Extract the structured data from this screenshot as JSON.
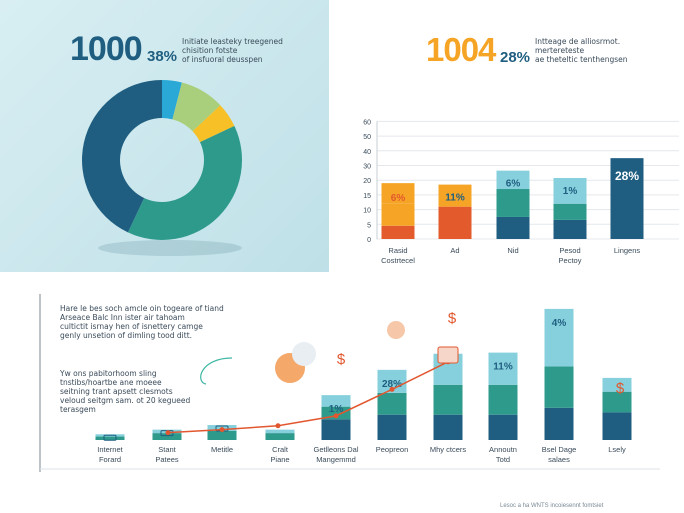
{
  "colors": {
    "dark_teal": "#1f5e80",
    "teal": "#2e9a8c",
    "light_cyan": "#85d0dc",
    "orange": "#f6a426",
    "red_orange": "#e35a2c",
    "green": "#a9cf7c",
    "accent_red": "#e2572f"
  },
  "donut_panel": {
    "big_number": "1000",
    "percent": "38%",
    "note_lines": [
      "Initiate leasteky treegened",
      "chisition fotste",
      "of insfuoral deusspen"
    ]
  },
  "bar_panel": {
    "big_number": "1004",
    "percent": "28%",
    "note_lines": [
      "Intteage de alliosrmot.",
      "mertereteste",
      "ae theteltic tenthengsen"
    ]
  },
  "bottom_panel": {
    "note_top": [
      "Hare le bes soch amcle oin togeare of tiand",
      "Arseace Balc Inn ister air tahoam",
      "cultictit isrnay hen of isnettery camge",
      "genly unsetion of dimling tood ditt."
    ],
    "note_mid": [
      "Yw ons pabitorhoom sling",
      "tnstibs/hoartbe ane moeee",
      "seitning trant apsett clesmots",
      "veloud seitgm sam. ot 20 kegueed",
      "terasgem"
    ],
    "footer": "Lesoc a ha WNTS incoiesennt fomtsiet"
  },
  "chart_data": [
    {
      "type": "pie",
      "hole": "donut",
      "slices": [
        {
          "color": "#2aa9d6",
          "value": 4
        },
        {
          "color": "#a9cf7c",
          "value": 9
        },
        {
          "color": "#f6c026",
          "value": 5
        },
        {
          "color": "#2e9a8c",
          "value": 39
        },
        {
          "color": "#1f5e80",
          "value": 43
        }
      ]
    },
    {
      "type": "bar",
      "stacked": true,
      "categories": [
        [
          "Rasid",
          "Costrtecel"
        ],
        [
          "Ad"
        ],
        [
          "Nid"
        ],
        [
          "Pesod",
          "Pectoy"
        ],
        [
          "Lingens"
        ]
      ],
      "yticks": [
        0,
        5,
        10,
        15,
        20,
        30,
        40,
        50,
        60
      ],
      "grid": true,
      "bars": [
        {
          "segments": [
            {
              "value": 4.5,
              "color": "#e35a2c"
            },
            {
              "value": 7.5,
              "color": "#f6a426"
            },
            {
              "value": 7,
              "color": "#f6a426"
            }
          ],
          "label": "6%",
          "label_color": "#e35a2c"
        },
        {
          "segments": [
            {
              "value": 11,
              "color": "#e35a2c"
            },
            {
              "value": 7.5,
              "color": "#f6a426"
            }
          ],
          "label": "11%",
          "label_color": "#1f5e80"
        },
        {
          "segments": [
            {
              "value": 7.5,
              "color": "#1f5e80"
            },
            {
              "value": 9.5,
              "color": "#2e9a8c"
            },
            {
              "value": 9.5,
              "color": "#85d0dc"
            }
          ],
          "label": "6%",
          "label_color": "#1f5e80"
        },
        {
          "segments": [
            {
              "value": 6.5,
              "color": "#1f5e80"
            },
            {
              "value": 5.5,
              "color": "#2e9a8c"
            },
            {
              "value": 9.5,
              "color": "#85d0dc"
            }
          ],
          "label": "1%",
          "label_color": "#1f5e80"
        },
        {
          "segments": [
            {
              "value": 35,
              "color": "#1f5e80"
            }
          ],
          "label": "28%",
          "label_color": "#ffffff"
        }
      ]
    },
    {
      "type": "bar",
      "stacked": true,
      "with_trend_line": true,
      "categories": [
        [
          "Internet",
          "Forard"
        ],
        [
          "Stant",
          "Patees"
        ],
        [
          "Metitle"
        ],
        [
          "Cralt",
          "Piane"
        ],
        [
          "Getlleons Dal",
          "Mangemmd"
        ],
        [
          "Peopreon"
        ],
        [
          "Mhy ctcers"
        ],
        [
          "Annoutn",
          "Totd"
        ],
        [
          "Bsel Dage",
          "salaes"
        ],
        [
          "Lsely"
        ]
      ],
      "bars": [
        {
          "segments": [
            {
              "value": 1.5,
              "color": "#2e9a8c"
            },
            {
              "value": 1,
              "color": "#85d0dc"
            }
          ],
          "label": "",
          "icon": "small-screen"
        },
        {
          "segments": [
            {
              "value": 3,
              "color": "#2e9a8c"
            },
            {
              "value": 1.5,
              "color": "#85d0dc"
            }
          ],
          "label": "",
          "icon": "small-screen"
        },
        {
          "segments": [
            {
              "value": 4,
              "color": "#2e9a8c"
            },
            {
              "value": 2.5,
              "color": "#85d0dc"
            }
          ],
          "label": "",
          "icon": "small-screen"
        },
        {
          "segments": [
            {
              "value": 3,
              "color": "#2e9a8c"
            },
            {
              "value": 1.5,
              "color": "#85d0dc"
            }
          ],
          "label": ""
        },
        {
          "segments": [
            {
              "value": 9,
              "color": "#1f5e80"
            },
            {
              "value": 5.5,
              "color": "#2e9a8c"
            },
            {
              "value": 5,
              "color": "#85d0dc"
            }
          ],
          "label": "1%"
        },
        {
          "segments": [
            {
              "value": 11,
              "color": "#1f5e80"
            },
            {
              "value": 9.5,
              "color": "#2e9a8c"
            },
            {
              "value": 10,
              "color": "#85d0dc"
            }
          ],
          "label": "28%"
        },
        {
          "segments": [
            {
              "value": 11,
              "color": "#1f5e80"
            },
            {
              "value": 13,
              "color": "#2e9a8c"
            },
            {
              "value": 13.5,
              "color": "#85d0dc"
            }
          ],
          "label": ""
        },
        {
          "segments": [
            {
              "value": 11,
              "color": "#1f5e80"
            },
            {
              "value": 13,
              "color": "#2e9a8c"
            },
            {
              "value": 14,
              "color": "#85d0dc"
            }
          ],
          "label": "11%"
        },
        {
          "segments": [
            {
              "value": 14,
              "color": "#1f5e80"
            },
            {
              "value": 18,
              "color": "#2e9a8c"
            },
            {
              "value": 25,
              "color": "#85d0dc"
            }
          ],
          "label": "4%"
        },
        {
          "segments": [
            {
              "value": 12,
              "color": "#1f5e80"
            },
            {
              "value": 9,
              "color": "#2e9a8c"
            },
            {
              "value": 6,
              "color": "#85d0dc"
            }
          ],
          "label": "",
          "dollar": true
        }
      ],
      "trend": [
        {
          "i": 0,
          "v": 3.2
        },
        {
          "i": 1,
          "v": 3.6
        },
        {
          "i": 2,
          "v": 4.5
        },
        {
          "i": 3,
          "v": 6.2
        },
        {
          "i": 4,
          "v": 10.5
        },
        {
          "i": 5,
          "v": 22
        },
        {
          "i": 6,
          "v": 34
        },
        {
          "i": 7,
          "v": 42
        }
      ],
      "dollar_markers": [
        4,
        7,
        9
      ]
    }
  ]
}
